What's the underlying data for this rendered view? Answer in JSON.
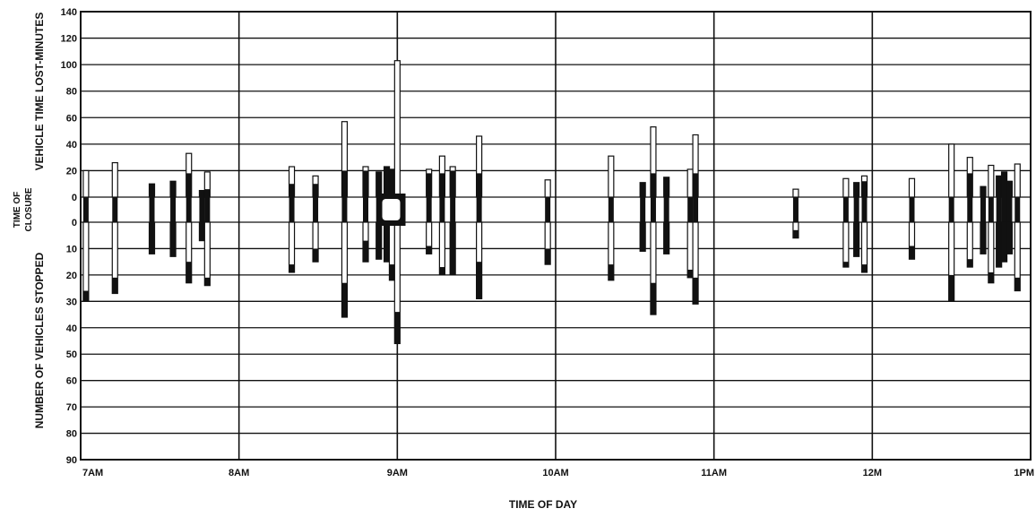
{
  "chart_data": {
    "type": "bar",
    "title": "",
    "xlabel": "TIME OF DAY",
    "ylabel_top": "VEHICLE TIME LOST-MINUTES",
    "ylabel_middle": [
      "TIME OF",
      "CLOSURE"
    ],
    "ylabel_bottom": "NUMBER OF VEHICLES STOPPED",
    "x_ticks": [
      "7AM",
      "8AM",
      "9AM",
      "10AM",
      "11AM",
      "12M",
      "1PM"
    ],
    "x_range_hours": [
      7,
      13
    ],
    "top_ticks": [
      "140",
      "120",
      "100",
      "80",
      "60",
      "40",
      "20",
      "0"
    ],
    "bottom_ticks": [
      "0",
      "10",
      "20",
      "30",
      "40",
      "50",
      "60",
      "70",
      "80",
      "90"
    ],
    "top_range": [
      0,
      140
    ],
    "bottom_range": [
      0,
      90
    ],
    "grid": true,
    "note": "Each closure: white bar above = vehicle time lost; bar below = vehicles stopped; black segments = closure duration.",
    "events": [
      {
        "t": "7:02",
        "lost": 20,
        "stopped": 30,
        "black_top": 0,
        "black_bottom": 4
      },
      {
        "t": "7:13",
        "lost": 26,
        "stopped": 27,
        "black_top": 0,
        "black_bottom": 6
      },
      {
        "t": "7:27",
        "lost": 10,
        "stopped": 12,
        "black_top": 10,
        "black_bottom": 12
      },
      {
        "t": "7:35",
        "lost": 12,
        "stopped": 13,
        "black_top": 12,
        "black_bottom": 13
      },
      {
        "t": "7:41",
        "lost": 33,
        "stopped": 23,
        "black_top": 18,
        "black_bottom": 8
      },
      {
        "t": "7:46",
        "lost": 5,
        "stopped": 7,
        "black_top": 5,
        "black_bottom": 7
      },
      {
        "t": "7:48",
        "lost": 19,
        "stopped": 24,
        "black_top": 6,
        "black_bottom": 3
      },
      {
        "t": "8:20",
        "lost": 23,
        "stopped": 19,
        "black_top": 10,
        "black_bottom": 3
      },
      {
        "t": "8:29",
        "lost": 16,
        "stopped": 15,
        "black_top": 10,
        "black_bottom": 5
      },
      {
        "t": "8:40",
        "lost": 57,
        "stopped": 36,
        "black_top": 20,
        "black_bottom": 13
      },
      {
        "t": "8:48",
        "lost": 23,
        "stopped": 15,
        "black_top": 20,
        "black_bottom": 8
      },
      {
        "t": "8:53",
        "lost": 19,
        "stopped": 14,
        "black_top": 19,
        "black_bottom": 14
      },
      {
        "t": "8:56",
        "lost": 23,
        "stopped": 15,
        "black_top": 23,
        "black_bottom": 15
      },
      {
        "t": "8:58",
        "lost": 21,
        "stopped": 22,
        "black_top": 21,
        "black_bottom": 6
      },
      {
        "t": "9:00",
        "lost": 103,
        "stopped": 46,
        "black_top": 0,
        "black_bottom": 12
      },
      {
        "t": "9:12",
        "lost": 21,
        "stopped": 12,
        "black_top": 18,
        "black_bottom": 3
      },
      {
        "t": "9:17",
        "lost": 31,
        "stopped": 20,
        "black_top": 18,
        "black_bottom": 3
      },
      {
        "t": "9:21",
        "lost": 23,
        "stopped": 20,
        "black_top": 20,
        "black_bottom": 20
      },
      {
        "t": "9:31",
        "lost": 46,
        "stopped": 29,
        "black_top": 18,
        "black_bottom": 14
      },
      {
        "t": "9:57",
        "lost": 13,
        "stopped": 16,
        "black_top": 0,
        "black_bottom": 6
      },
      {
        "t": "10:21",
        "lost": 31,
        "stopped": 22,
        "black_top": 0,
        "black_bottom": 6
      },
      {
        "t": "10:33",
        "lost": 11,
        "stopped": 11,
        "black_top": 11,
        "black_bottom": 11
      },
      {
        "t": "10:37",
        "lost": 53,
        "stopped": 35,
        "black_top": 18,
        "black_bottom": 12
      },
      {
        "t": "10:42",
        "lost": 15,
        "stopped": 12,
        "black_top": 15,
        "black_bottom": 12
      },
      {
        "t": "10:51",
        "lost": 21,
        "stopped": 21,
        "black_top": 0,
        "black_bottom": 3
      },
      {
        "t": "10:53",
        "lost": 47,
        "stopped": 31,
        "black_top": 18,
        "black_bottom": 10
      },
      {
        "t": "11:31",
        "lost": 6,
        "stopped": 6,
        "black_top": 0,
        "black_bottom": 3
      },
      {
        "t": "11:50",
        "lost": 14,
        "stopped": 17,
        "black_top": 0,
        "black_bottom": 2
      },
      {
        "t": "11:54",
        "lost": 11,
        "stopped": 13,
        "black_top": 11,
        "black_bottom": 13
      },
      {
        "t": "11:57",
        "lost": 16,
        "stopped": 19,
        "black_top": 12,
        "black_bottom": 3
      },
      {
        "t": "12:15",
        "lost": 14,
        "stopped": 14,
        "black_top": 0,
        "black_bottom": 5
      },
      {
        "t": "12:30",
        "lost": 40,
        "stopped": 30,
        "black_top": 0,
        "black_bottom": 10
      },
      {
        "t": "12:37",
        "lost": 30,
        "stopped": 17,
        "black_top": 18,
        "black_bottom": 3
      },
      {
        "t": "12:42",
        "lost": 8,
        "stopped": 12,
        "black_top": 8,
        "black_bottom": 12
      },
      {
        "t": "12:45",
        "lost": 24,
        "stopped": 23,
        "black_top": 0,
        "black_bottom": 4
      },
      {
        "t": "12:48",
        "lost": 16,
        "stopped": 17,
        "black_top": 16,
        "black_bottom": 17
      },
      {
        "t": "12:50",
        "lost": 19,
        "stopped": 15,
        "black_top": 19,
        "black_bottom": 15
      },
      {
        "t": "12:52",
        "lost": 12,
        "stopped": 12,
        "black_top": 12,
        "black_bottom": 12
      },
      {
        "t": "12:55",
        "lost": 25,
        "stopped": 26,
        "black_top": 0,
        "black_bottom": 5
      }
    ]
  },
  "colors": {
    "ink": "#111111",
    "paper": "#ffffff"
  }
}
